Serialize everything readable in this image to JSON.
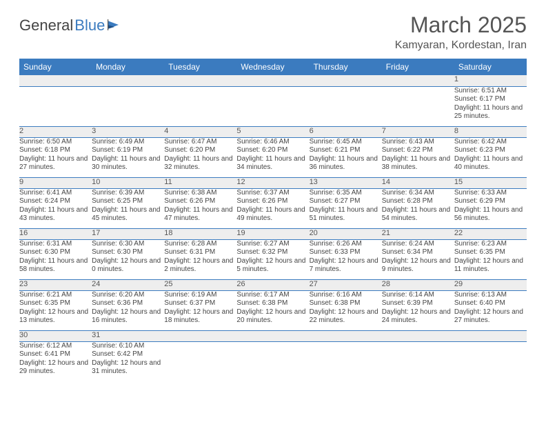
{
  "brand": {
    "part1": "General",
    "part2": "Blue"
  },
  "title": "March 2025",
  "location": "Kamyaran, Kordestan, Iran",
  "colors": {
    "header_bg": "#3b7bbf",
    "header_text": "#ffffff",
    "daynum_bg": "#eeeeee",
    "text": "#444444",
    "rule": "#3b7bbf"
  },
  "day_headers": [
    "Sunday",
    "Monday",
    "Tuesday",
    "Wednesday",
    "Thursday",
    "Friday",
    "Saturday"
  ],
  "weeks": [
    [
      null,
      null,
      null,
      null,
      null,
      null,
      {
        "n": "1",
        "sr": "Sunrise: 6:51 AM",
        "ss": "Sunset: 6:17 PM",
        "dl": "Daylight: 11 hours and 25 minutes."
      }
    ],
    [
      {
        "n": "2",
        "sr": "Sunrise: 6:50 AM",
        "ss": "Sunset: 6:18 PM",
        "dl": "Daylight: 11 hours and 27 minutes."
      },
      {
        "n": "3",
        "sr": "Sunrise: 6:49 AM",
        "ss": "Sunset: 6:19 PM",
        "dl": "Daylight: 11 hours and 30 minutes."
      },
      {
        "n": "4",
        "sr": "Sunrise: 6:47 AM",
        "ss": "Sunset: 6:20 PM",
        "dl": "Daylight: 11 hours and 32 minutes."
      },
      {
        "n": "5",
        "sr": "Sunrise: 6:46 AM",
        "ss": "Sunset: 6:20 PM",
        "dl": "Daylight: 11 hours and 34 minutes."
      },
      {
        "n": "6",
        "sr": "Sunrise: 6:45 AM",
        "ss": "Sunset: 6:21 PM",
        "dl": "Daylight: 11 hours and 36 minutes."
      },
      {
        "n": "7",
        "sr": "Sunrise: 6:43 AM",
        "ss": "Sunset: 6:22 PM",
        "dl": "Daylight: 11 hours and 38 minutes."
      },
      {
        "n": "8",
        "sr": "Sunrise: 6:42 AM",
        "ss": "Sunset: 6:23 PM",
        "dl": "Daylight: 11 hours and 40 minutes."
      }
    ],
    [
      {
        "n": "9",
        "sr": "Sunrise: 6:41 AM",
        "ss": "Sunset: 6:24 PM",
        "dl": "Daylight: 11 hours and 43 minutes."
      },
      {
        "n": "10",
        "sr": "Sunrise: 6:39 AM",
        "ss": "Sunset: 6:25 PM",
        "dl": "Daylight: 11 hours and 45 minutes."
      },
      {
        "n": "11",
        "sr": "Sunrise: 6:38 AM",
        "ss": "Sunset: 6:26 PM",
        "dl": "Daylight: 11 hours and 47 minutes."
      },
      {
        "n": "12",
        "sr": "Sunrise: 6:37 AM",
        "ss": "Sunset: 6:26 PM",
        "dl": "Daylight: 11 hours and 49 minutes."
      },
      {
        "n": "13",
        "sr": "Sunrise: 6:35 AM",
        "ss": "Sunset: 6:27 PM",
        "dl": "Daylight: 11 hours and 51 minutes."
      },
      {
        "n": "14",
        "sr": "Sunrise: 6:34 AM",
        "ss": "Sunset: 6:28 PM",
        "dl": "Daylight: 11 hours and 54 minutes."
      },
      {
        "n": "15",
        "sr": "Sunrise: 6:33 AM",
        "ss": "Sunset: 6:29 PM",
        "dl": "Daylight: 11 hours and 56 minutes."
      }
    ],
    [
      {
        "n": "16",
        "sr": "Sunrise: 6:31 AM",
        "ss": "Sunset: 6:30 PM",
        "dl": "Daylight: 11 hours and 58 minutes."
      },
      {
        "n": "17",
        "sr": "Sunrise: 6:30 AM",
        "ss": "Sunset: 6:30 PM",
        "dl": "Daylight: 12 hours and 0 minutes."
      },
      {
        "n": "18",
        "sr": "Sunrise: 6:28 AM",
        "ss": "Sunset: 6:31 PM",
        "dl": "Daylight: 12 hours and 2 minutes."
      },
      {
        "n": "19",
        "sr": "Sunrise: 6:27 AM",
        "ss": "Sunset: 6:32 PM",
        "dl": "Daylight: 12 hours and 5 minutes."
      },
      {
        "n": "20",
        "sr": "Sunrise: 6:26 AM",
        "ss": "Sunset: 6:33 PM",
        "dl": "Daylight: 12 hours and 7 minutes."
      },
      {
        "n": "21",
        "sr": "Sunrise: 6:24 AM",
        "ss": "Sunset: 6:34 PM",
        "dl": "Daylight: 12 hours and 9 minutes."
      },
      {
        "n": "22",
        "sr": "Sunrise: 6:23 AM",
        "ss": "Sunset: 6:35 PM",
        "dl": "Daylight: 12 hours and 11 minutes."
      }
    ],
    [
      {
        "n": "23",
        "sr": "Sunrise: 6:21 AM",
        "ss": "Sunset: 6:35 PM",
        "dl": "Daylight: 12 hours and 13 minutes."
      },
      {
        "n": "24",
        "sr": "Sunrise: 6:20 AM",
        "ss": "Sunset: 6:36 PM",
        "dl": "Daylight: 12 hours and 16 minutes."
      },
      {
        "n": "25",
        "sr": "Sunrise: 6:19 AM",
        "ss": "Sunset: 6:37 PM",
        "dl": "Daylight: 12 hours and 18 minutes."
      },
      {
        "n": "26",
        "sr": "Sunrise: 6:17 AM",
        "ss": "Sunset: 6:38 PM",
        "dl": "Daylight: 12 hours and 20 minutes."
      },
      {
        "n": "27",
        "sr": "Sunrise: 6:16 AM",
        "ss": "Sunset: 6:38 PM",
        "dl": "Daylight: 12 hours and 22 minutes."
      },
      {
        "n": "28",
        "sr": "Sunrise: 6:14 AM",
        "ss": "Sunset: 6:39 PM",
        "dl": "Daylight: 12 hours and 24 minutes."
      },
      {
        "n": "29",
        "sr": "Sunrise: 6:13 AM",
        "ss": "Sunset: 6:40 PM",
        "dl": "Daylight: 12 hours and 27 minutes."
      }
    ],
    [
      {
        "n": "30",
        "sr": "Sunrise: 6:12 AM",
        "ss": "Sunset: 6:41 PM",
        "dl": "Daylight: 12 hours and 29 minutes."
      },
      {
        "n": "31",
        "sr": "Sunrise: 6:10 AM",
        "ss": "Sunset: 6:42 PM",
        "dl": "Daylight: 12 hours and 31 minutes."
      },
      null,
      null,
      null,
      null,
      null
    ]
  ]
}
